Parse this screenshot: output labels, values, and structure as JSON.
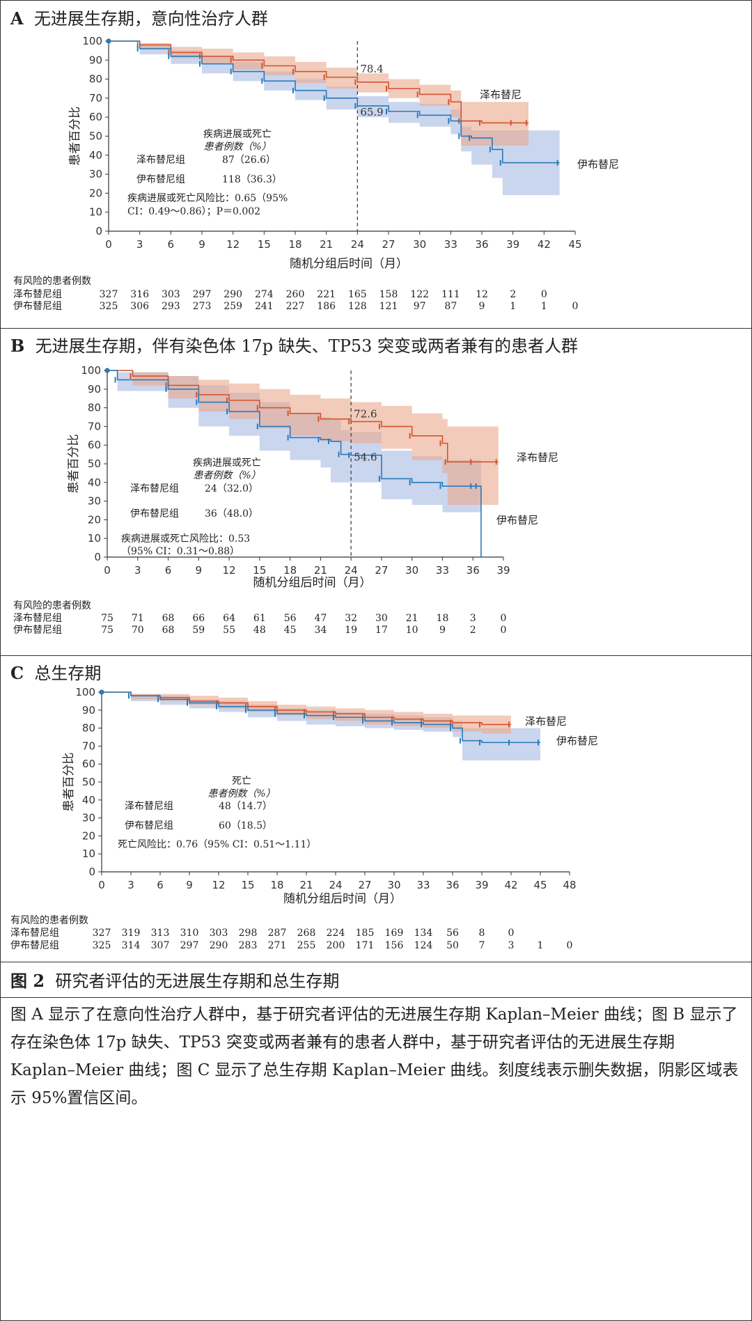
{
  "colors": {
    "zanu": "#d4532e",
    "zanu_ci": "#e9a98c",
    "ibru": "#2a7ab8",
    "ibru_ci": "#a6b9e3"
  },
  "panels": [
    {
      "id": "A",
      "title_letter": "A",
      "title_text": "无进展生存期，意向性治疗人群",
      "ylabel": "患者百分比",
      "xlabel": "随机分组后时间（月）",
      "risk_title": "有风险的患者例数",
      "annot_header": "疾病进展或死亡",
      "annot_subheader": "患者例数（%）",
      "rows": [
        {
          "label": "泽布替尼组",
          "value": "87（26.6）"
        },
        {
          "label": "伊布替尼组",
          "value": "118（36.3）"
        }
      ],
      "hr_lines": [
        "疾病进展或死亡风险比：0.65（95%",
        "CI：0.49～0.86）；P＝0.002"
      ],
      "landmark": {
        "x": 24,
        "zanu_label": "78.4",
        "ibru_label": "65.9"
      },
      "series_labels": {
        "zanu": "泽布替尼",
        "ibru": "伊布替尼"
      },
      "risk_rows": [
        {
          "label": "泽布替尼组",
          "values": [
            "327",
            "316",
            "303",
            "297",
            "290",
            "274",
            "260",
            "221",
            "165",
            "158",
            "122",
            "111",
            "12",
            "2",
            "0"
          ]
        },
        {
          "label": "伊布替尼组",
          "values": [
            "325",
            "306",
            "293",
            "273",
            "259",
            "241",
            "227",
            "186",
            "128",
            "121",
            "97",
            "87",
            "9",
            "1",
            "1",
            "0"
          ]
        }
      ]
    },
    {
      "id": "B",
      "title_letter": "B",
      "title_text": "无进展生存期，伴有染色体 17p 缺失、TP53 突变或两者兼有的患者人群",
      "ylabel": "患者百分比",
      "xlabel": "随机分组后时间（月）",
      "risk_title": "有风险的患者例数",
      "annot_header": "疾病进展或死亡",
      "annot_subheader": "患者例数（%）",
      "rows": [
        {
          "label": "泽布替尼组",
          "value": "24（32.0）"
        },
        {
          "label": "伊布替尼组",
          "value": "36（48.0）"
        }
      ],
      "hr_lines": [
        "疾病进展或死亡风险比：0.53",
        "（95% CI：0.31～0.88）"
      ],
      "landmark": {
        "x": 24,
        "zanu_label": "72.6",
        "ibru_label": "54.6"
      },
      "series_labels": {
        "zanu": "泽布替尼",
        "ibru": "伊布替尼"
      },
      "risk_rows": [
        {
          "label": "泽布替尼组",
          "values": [
            "75",
            "71",
            "68",
            "66",
            "64",
            "61",
            "56",
            "47",
            "32",
            "30",
            "21",
            "18",
            "3",
            "0"
          ]
        },
        {
          "label": "伊布替尼组",
          "values": [
            "75",
            "70",
            "68",
            "59",
            "55",
            "48",
            "45",
            "34",
            "19",
            "17",
            "10",
            "9",
            "2",
            "0"
          ]
        }
      ]
    },
    {
      "id": "C",
      "title_letter": "C",
      "title_text": "总生存期",
      "ylabel": "患者百分比",
      "xlabel": "随机分组后时间（月）",
      "risk_title": "有风险的患者例数",
      "annot_header": "死亡",
      "annot_subheader": "患者例数（%）",
      "rows": [
        {
          "label": "泽布替尼组",
          "value": "48（14.7）"
        },
        {
          "label": "伊布替尼组",
          "value": "60（18.5）"
        }
      ],
      "hr_lines": [
        "死亡风险比：0.76（95% CI：0.51～1.11）"
      ],
      "series_labels": {
        "zanu": "泽布替尼",
        "ibru": "伊布替尼"
      },
      "risk_rows": [
        {
          "label": "泽布替尼组",
          "values": [
            "327",
            "319",
            "313",
            "310",
            "303",
            "298",
            "287",
            "268",
            "224",
            "185",
            "169",
            "134",
            "56",
            "8",
            "0"
          ]
        },
        {
          "label": "伊布替尼组",
          "values": [
            "325",
            "314",
            "307",
            "297",
            "290",
            "283",
            "271",
            "255",
            "200",
            "171",
            "156",
            "124",
            "50",
            "7",
            "3",
            "1",
            "0"
          ]
        }
      ]
    }
  ],
  "caption": {
    "title_num": "图 2",
    "title_text": "研究者评估的无进展生存期和总生存期",
    "body": "图 A 显示了在意向性治疗人群中，基于研究者评估的无进展生存期 Kaplan–Meier 曲线；图 B 显示了存在染色体 17p 缺失、TP53 突变或两者兼有的患者人群中，基于研究者评估的无进展生存期 Kaplan–Meier 曲线；图 C 显示了总生存期 Kaplan–Meier 曲线。刻度线表示删失数据，阴影区域表示 95%置信区间。"
  },
  "chart_data": [
    {
      "type": "line",
      "title": "A 无进展生存期，意向性治疗人群",
      "xlabel": "随机分组后时间（月）",
      "ylabel": "患者百分比",
      "xlim": [
        0,
        45
      ],
      "ylim": [
        0,
        100
      ],
      "xticks": [
        0,
        3,
        6,
        9,
        12,
        15,
        18,
        21,
        24,
        27,
        30,
        33,
        36,
        39,
        42,
        45
      ],
      "yticks": [
        0,
        10,
        20,
        30,
        40,
        50,
        60,
        70,
        80,
        90,
        100
      ],
      "series": [
        {
          "name": "泽布替尼",
          "x": [
            0,
            3,
            6,
            9,
            12,
            15,
            18,
            21,
            24,
            27,
            30,
            33,
            34,
            36,
            39,
            40.5
          ],
          "y": [
            100,
            98,
            94,
            92,
            90,
            87,
            84,
            81,
            78.4,
            75,
            72,
            68,
            58,
            57,
            57,
            57
          ],
          "ci_upper": [
            100,
            99,
            97,
            96,
            94,
            92,
            89,
            86,
            83,
            80,
            77,
            74,
            68,
            68,
            68,
            68
          ],
          "ci_lower": [
            100,
            96,
            91,
            88,
            85,
            82,
            78,
            75,
            73,
            70,
            66,
            60,
            45,
            45,
            45,
            45
          ]
        },
        {
          "name": "伊布替尼",
          "x": [
            0,
            3,
            6,
            9,
            12,
            15,
            18,
            21,
            24,
            27,
            30,
            33,
            34,
            35,
            37,
            38,
            43.5
          ],
          "y": [
            100,
            96,
            92,
            88,
            84,
            79,
            74,
            70,
            65.9,
            63,
            61,
            58,
            50,
            49,
            43,
            36,
            36
          ],
          "ci_upper": [
            100,
            98,
            95,
            92,
            89,
            84,
            80,
            76,
            71,
            68,
            67,
            64,
            55,
            53,
            53,
            53,
            53
          ],
          "ci_lower": [
            100,
            93,
            88,
            83,
            79,
            74,
            69,
            64,
            60,
            57,
            55,
            51,
            42,
            35,
            28,
            19,
            19
          ]
        }
      ]
    },
    {
      "type": "line",
      "title": "B 无进展生存期，伴有染色体 17p 缺失、TP53 突变或两者兼有的患者人群",
      "xlabel": "随机分组后时间（月）",
      "ylabel": "患者百分比",
      "xlim": [
        0,
        39
      ],
      "ylim": [
        0,
        100
      ],
      "xticks": [
        0,
        3,
        6,
        9,
        12,
        15,
        18,
        21,
        24,
        27,
        30,
        33,
        36,
        39
      ],
      "yticks": [
        0,
        10,
        20,
        30,
        40,
        50,
        60,
        70,
        80,
        90,
        100
      ],
      "series": [
        {
          "name": "泽布替尼",
          "x": [
            0,
            2.5,
            6,
            9,
            12,
            15,
            18,
            21,
            24,
            27,
            30,
            33,
            33.5,
            36,
            38.5
          ],
          "y": [
            100,
            97,
            92,
            87,
            84,
            80,
            77,
            74,
            72.6,
            70,
            65,
            61,
            51,
            51,
            51
          ],
          "ci_upper": [
            100,
            99,
            97,
            95,
            93,
            90,
            87,
            85,
            83,
            81,
            77,
            74,
            70,
            70,
            70
          ],
          "ci_lower": [
            100,
            92,
            85,
            78,
            74,
            69,
            65,
            62,
            61,
            58,
            52,
            45,
            28,
            28,
            28
          ]
        },
        {
          "name": "伊布替尼",
          "x": [
            0,
            1,
            6,
            9,
            12,
            15,
            18,
            21,
            22,
            23,
            24,
            27,
            30,
            33,
            36,
            36.5,
            36.8
          ],
          "y": [
            100,
            95,
            90,
            83,
            78,
            70,
            64,
            63,
            62,
            55,
            54.6,
            42,
            40,
            38,
            38,
            38,
            0
          ],
          "ci_upper": [
            100,
            99,
            97,
            92,
            88,
            83,
            77,
            75,
            74,
            68,
            67,
            57,
            54,
            52,
            52,
            52,
            52
          ],
          "ci_lower": [
            100,
            89,
            80,
            70,
            65,
            57,
            52,
            48,
            40,
            40,
            40,
            31,
            28,
            24,
            24,
            24,
            0
          ]
        }
      ]
    },
    {
      "type": "line",
      "title": "C 总生存期",
      "xlabel": "随机分组后时间（月）",
      "ylabel": "患者百分比",
      "xlim": [
        0,
        48
      ],
      "ylim": [
        0,
        100
      ],
      "xticks": [
        0,
        3,
        6,
        9,
        12,
        15,
        18,
        21,
        24,
        27,
        30,
        33,
        36,
        39,
        42,
        45,
        48
      ],
      "yticks": [
        0,
        10,
        20,
        30,
        40,
        50,
        60,
        70,
        80,
        90,
        100
      ],
      "series": [
        {
          "name": "泽布替尼",
          "x": [
            0,
            3,
            6,
            9,
            12,
            15,
            18,
            21,
            24,
            27,
            30,
            33,
            36,
            39,
            42
          ],
          "y": [
            100,
            98,
            97,
            95,
            94,
            92,
            90,
            89,
            88,
            86,
            85,
            84,
            83,
            82,
            82
          ],
          "ci_upper": [
            100,
            99,
            99,
            98,
            97,
            95,
            93,
            92,
            91,
            90,
            89,
            88,
            87,
            87,
            87
          ],
          "ci_lower": [
            100,
            96,
            95,
            93,
            91,
            89,
            87,
            85,
            84,
            82,
            81,
            80,
            78,
            77,
            77
          ]
        },
        {
          "name": "伊布替尼",
          "x": [
            0,
            3,
            6,
            9,
            12,
            15,
            18,
            21,
            24,
            27,
            30,
            33,
            36,
            37,
            39,
            42,
            45
          ],
          "y": [
            100,
            98,
            96,
            94,
            92,
            90,
            88,
            87,
            86,
            84,
            83,
            82,
            80,
            73,
            72,
            72,
            72
          ],
          "ci_upper": [
            100,
            99,
            98,
            96,
            95,
            93,
            91,
            90,
            89,
            88,
            87,
            86,
            84,
            80,
            80,
            80,
            80
          ],
          "ci_lower": [
            100,
            95,
            93,
            91,
            89,
            86,
            84,
            82,
            81,
            80,
            79,
            78,
            75,
            62,
            62,
            62,
            62
          ]
        }
      ]
    }
  ]
}
